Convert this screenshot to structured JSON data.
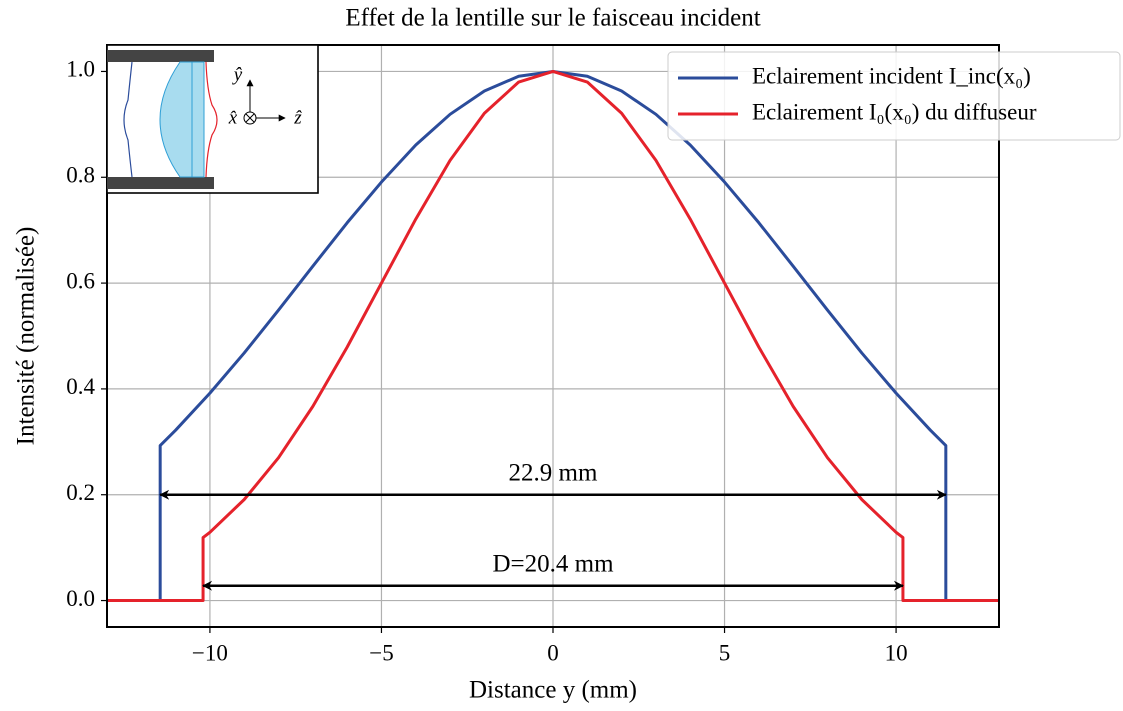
{
  "chart_data": {
    "type": "line",
    "title": "Effet de la lentille sur le faisceau incident",
    "xlabel": "Distance y (mm)",
    "ylabel": "Intensité (normalisée)",
    "xlim": [
      -13,
      13
    ],
    "ylim": [
      -0.05,
      1.05
    ],
    "xticks": [
      {
        "value": -10,
        "label": "−10"
      },
      {
        "value": -5,
        "label": "−5"
      },
      0,
      5,
      10
    ],
    "yticks": [
      {
        "value": 0,
        "label": "0.0"
      },
      0.2,
      0.4,
      0.6,
      0.8,
      {
        "value": 1,
        "label": "1.0"
      }
    ],
    "grid": true,
    "legend": "upper right",
    "series": [
      {
        "name": "Eclairement incident I_inc(x₀)",
        "color": "#2b4c9b",
        "x": [
          -13,
          -11.45,
          -11.45,
          -11,
          -10,
          -9,
          -8,
          -7,
          -6,
          -5,
          -4,
          -3,
          -2,
          -1,
          0,
          1,
          2,
          3,
          4,
          5,
          6,
          7,
          8,
          9,
          10,
          11,
          11.45,
          11.45,
          13
        ],
        "values": [
          0,
          0,
          0.293,
          0.322,
          0.392,
          0.468,
          0.549,
          0.632,
          0.714,
          0.791,
          0.861,
          0.919,
          0.963,
          0.991,
          1,
          0.991,
          0.963,
          0.919,
          0.861,
          0.791,
          0.714,
          0.632,
          0.549,
          0.468,
          0.392,
          0.322,
          0.293,
          0,
          0
        ]
      },
      {
        "name": "Eclairement I₀(x₀) du diffuseur",
        "color": "#e5222b",
        "x": [
          -13,
          -10.2,
          -10.2,
          -10,
          -9,
          -8,
          -7,
          -6,
          -5,
          -4,
          -3,
          -2,
          -1,
          0,
          1,
          2,
          3,
          4,
          5,
          6,
          7,
          8,
          9,
          10,
          10.2,
          10.2,
          13
        ],
        "values": [
          0,
          0,
          0.119,
          0.129,
          0.191,
          0.27,
          0.367,
          0.479,
          0.6,
          0.721,
          0.832,
          0.921,
          0.98,
          1,
          0.98,
          0.921,
          0.832,
          0.721,
          0.6,
          0.479,
          0.367,
          0.27,
          0.191,
          0.129,
          0.119,
          0,
          0
        ]
      }
    ],
    "annotations": [
      {
        "text": "22.9 mm",
        "x": [
          -11.45,
          11.45
        ],
        "y": 0.2
      },
      {
        "text": "D=20.4 mm",
        "x": [
          -10.2,
          10.2
        ],
        "y": 0.028
      }
    ],
    "inset_labels": {
      "y": "ŷ",
      "x": "x̂",
      "z": "ẑ"
    }
  }
}
